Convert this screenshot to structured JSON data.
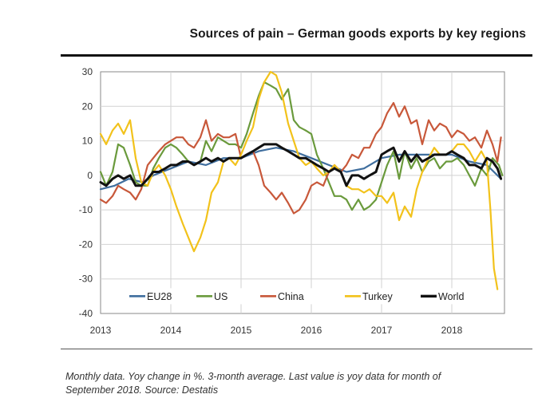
{
  "title": "Sources of pain – German goods exports by key regions",
  "footnote": {
    "line1": "Monthly data. Yoy change in %. 3-month average. Last value is yoy data for month of",
    "line2": "September 2018. Source: Destatis"
  },
  "chart_data": {
    "type": "line",
    "ylim": [
      -40,
      30
    ],
    "yticks": [
      30,
      20,
      10,
      0,
      -10,
      -20,
      -30,
      -40
    ],
    "xlim": [
      2013,
      2018.75
    ],
    "xticks": [
      2013,
      2014,
      2015,
      2016,
      2017,
      2018
    ],
    "grid": true,
    "legend_position": "bottom-inside",
    "series": [
      {
        "name": "EU28",
        "color": "#3f6e9e",
        "width": 2.2,
        "points": [
          [
            2013,
            -4
          ],
          [
            2013.2,
            -3
          ],
          [
            2013.4,
            -1
          ],
          [
            2013.6,
            -2
          ],
          [
            2013.75,
            0
          ],
          [
            2014,
            2
          ],
          [
            2014.25,
            4
          ],
          [
            2014.5,
            3
          ],
          [
            2014.75,
            5
          ],
          [
            2015,
            5
          ],
          [
            2015.25,
            7
          ],
          [
            2015.5,
            8
          ],
          [
            2015.75,
            7
          ],
          [
            2016,
            5
          ],
          [
            2016.25,
            3
          ],
          [
            2016.5,
            1
          ],
          [
            2016.75,
            2
          ],
          [
            2017,
            5
          ],
          [
            2017.25,
            6
          ],
          [
            2017.5,
            6
          ],
          [
            2017.75,
            6
          ],
          [
            2018,
            6
          ],
          [
            2018.25,
            4
          ],
          [
            2018.5,
            3
          ],
          [
            2018.7,
            -1
          ]
        ]
      },
      {
        "name": "US",
        "color": "#6a9a3c",
        "width": 2.2,
        "points": [
          [
            2013,
            1
          ],
          [
            2013.08,
            -3
          ],
          [
            2013.17,
            1
          ],
          [
            2013.25,
            9
          ],
          [
            2013.33,
            8
          ],
          [
            2013.42,
            3
          ],
          [
            2013.5,
            -2
          ],
          [
            2013.58,
            -3
          ],
          [
            2013.67,
            -3
          ],
          [
            2013.75,
            2
          ],
          [
            2013.83,
            5
          ],
          [
            2013.92,
            8
          ],
          [
            2014,
            9
          ],
          [
            2014.08,
            8
          ],
          [
            2014.17,
            6
          ],
          [
            2014.25,
            4
          ],
          [
            2014.33,
            3
          ],
          [
            2014.42,
            4
          ],
          [
            2014.5,
            10
          ],
          [
            2014.58,
            7
          ],
          [
            2014.67,
            11
          ],
          [
            2014.75,
            10
          ],
          [
            2014.83,
            9
          ],
          [
            2014.92,
            9
          ],
          [
            2015,
            8
          ],
          [
            2015.08,
            12
          ],
          [
            2015.17,
            18
          ],
          [
            2015.25,
            23
          ],
          [
            2015.33,
            27
          ],
          [
            2015.42,
            26
          ],
          [
            2015.5,
            25
          ],
          [
            2015.58,
            22
          ],
          [
            2015.67,
            25
          ],
          [
            2015.75,
            16
          ],
          [
            2015.83,
            14
          ],
          [
            2015.92,
            13
          ],
          [
            2016,
            12
          ],
          [
            2016.08,
            6
          ],
          [
            2016.17,
            2
          ],
          [
            2016.25,
            -2
          ],
          [
            2016.33,
            -6
          ],
          [
            2016.42,
            -6
          ],
          [
            2016.5,
            -7
          ],
          [
            2016.58,
            -10
          ],
          [
            2016.67,
            -7
          ],
          [
            2016.75,
            -10
          ],
          [
            2016.83,
            -9
          ],
          [
            2016.92,
            -7
          ],
          [
            2017,
            -2
          ],
          [
            2017.08,
            3
          ],
          [
            2017.17,
            7
          ],
          [
            2017.25,
            -1
          ],
          [
            2017.33,
            7
          ],
          [
            2017.42,
            2
          ],
          [
            2017.5,
            5
          ],
          [
            2017.58,
            1
          ],
          [
            2017.67,
            4
          ],
          [
            2017.75,
            5
          ],
          [
            2017.83,
            2
          ],
          [
            2017.92,
            4
          ],
          [
            2018,
            4
          ],
          [
            2018.08,
            5
          ],
          [
            2018.17,
            3
          ],
          [
            2018.25,
            0
          ],
          [
            2018.33,
            -3
          ],
          [
            2018.42,
            2
          ],
          [
            2018.5,
            0
          ],
          [
            2018.58,
            5
          ],
          [
            2018.67,
            3
          ],
          [
            2018.72,
            0
          ]
        ]
      },
      {
        "name": "China",
        "color": "#c8583a",
        "width": 2.2,
        "points": [
          [
            2013,
            -7
          ],
          [
            2013.08,
            -8
          ],
          [
            2013.17,
            -6
          ],
          [
            2013.25,
            -3
          ],
          [
            2013.33,
            -4
          ],
          [
            2013.42,
            -5
          ],
          [
            2013.5,
            -7
          ],
          [
            2013.58,
            -4
          ],
          [
            2013.67,
            3
          ],
          [
            2013.75,
            5
          ],
          [
            2013.83,
            7
          ],
          [
            2013.92,
            9
          ],
          [
            2014,
            10
          ],
          [
            2014.08,
            11
          ],
          [
            2014.17,
            11
          ],
          [
            2014.25,
            9
          ],
          [
            2014.33,
            8
          ],
          [
            2014.42,
            11
          ],
          [
            2014.5,
            16
          ],
          [
            2014.58,
            10
          ],
          [
            2014.67,
            12
          ],
          [
            2014.75,
            11
          ],
          [
            2014.83,
            11
          ],
          [
            2014.92,
            12
          ],
          [
            2015,
            5
          ],
          [
            2015.08,
            6
          ],
          [
            2015.17,
            7
          ],
          [
            2015.25,
            3
          ],
          [
            2015.33,
            -3
          ],
          [
            2015.42,
            -5
          ],
          [
            2015.5,
            -7
          ],
          [
            2015.58,
            -5
          ],
          [
            2015.67,
            -8
          ],
          [
            2015.75,
            -11
          ],
          [
            2015.83,
            -10
          ],
          [
            2015.92,
            -7
          ],
          [
            2016,
            -3
          ],
          [
            2016.08,
            -2
          ],
          [
            2016.17,
            -3
          ],
          [
            2016.25,
            1
          ],
          [
            2016.33,
            3
          ],
          [
            2016.42,
            1
          ],
          [
            2016.5,
            3
          ],
          [
            2016.58,
            6
          ],
          [
            2016.67,
            5
          ],
          [
            2016.75,
            8
          ],
          [
            2016.83,
            8
          ],
          [
            2016.92,
            12
          ],
          [
            2017,
            14
          ],
          [
            2017.08,
            18
          ],
          [
            2017.17,
            21
          ],
          [
            2017.25,
            17
          ],
          [
            2017.33,
            20
          ],
          [
            2017.42,
            15
          ],
          [
            2017.5,
            16
          ],
          [
            2017.58,
            9
          ],
          [
            2017.67,
            16
          ],
          [
            2017.75,
            13
          ],
          [
            2017.83,
            15
          ],
          [
            2017.92,
            14
          ],
          [
            2018,
            11
          ],
          [
            2018.08,
            13
          ],
          [
            2018.17,
            12
          ],
          [
            2018.25,
            10
          ],
          [
            2018.33,
            11
          ],
          [
            2018.42,
            8
          ],
          [
            2018.5,
            13
          ],
          [
            2018.58,
            9
          ],
          [
            2018.65,
            4
          ],
          [
            2018.7,
            11
          ]
        ]
      },
      {
        "name": "Turkey",
        "color": "#f2c21b",
        "width": 2.2,
        "points": [
          [
            2013,
            12
          ],
          [
            2013.08,
            9
          ],
          [
            2013.17,
            13
          ],
          [
            2013.25,
            15
          ],
          [
            2013.33,
            12
          ],
          [
            2013.42,
            16
          ],
          [
            2013.5,
            5
          ],
          [
            2013.58,
            -2
          ],
          [
            2013.67,
            -3
          ],
          [
            2013.75,
            1
          ],
          [
            2013.83,
            3
          ],
          [
            2013.92,
            0
          ],
          [
            2014,
            -4
          ],
          [
            2014.08,
            -9
          ],
          [
            2014.17,
            -14
          ],
          [
            2014.25,
            -18
          ],
          [
            2014.33,
            -22
          ],
          [
            2014.42,
            -18
          ],
          [
            2014.5,
            -13
          ],
          [
            2014.58,
            -5
          ],
          [
            2014.67,
            -2
          ],
          [
            2014.75,
            4
          ],
          [
            2014.83,
            5
          ],
          [
            2014.92,
            3
          ],
          [
            2015,
            6
          ],
          [
            2015.08,
            10
          ],
          [
            2015.17,
            14
          ],
          [
            2015.25,
            22
          ],
          [
            2015.33,
            27
          ],
          [
            2015.42,
            30
          ],
          [
            2015.5,
            29
          ],
          [
            2015.58,
            24
          ],
          [
            2015.67,
            15
          ],
          [
            2015.75,
            10
          ],
          [
            2015.83,
            5
          ],
          [
            2015.92,
            3
          ],
          [
            2016,
            4
          ],
          [
            2016.08,
            2
          ],
          [
            2016.17,
            0
          ],
          [
            2016.25,
            1
          ],
          [
            2016.33,
            3
          ],
          [
            2016.42,
            1
          ],
          [
            2016.5,
            -3
          ],
          [
            2016.58,
            -4
          ],
          [
            2016.67,
            -4
          ],
          [
            2016.75,
            -5
          ],
          [
            2016.83,
            -4
          ],
          [
            2016.92,
            -6
          ],
          [
            2017,
            -6
          ],
          [
            2017.08,
            -8
          ],
          [
            2017.17,
            -5
          ],
          [
            2017.25,
            -13
          ],
          [
            2017.33,
            -9
          ],
          [
            2017.42,
            -12
          ],
          [
            2017.5,
            -4
          ],
          [
            2017.58,
            1
          ],
          [
            2017.67,
            5
          ],
          [
            2017.75,
            8
          ],
          [
            2017.83,
            6
          ],
          [
            2017.92,
            6
          ],
          [
            2018,
            7
          ],
          [
            2018.08,
            9
          ],
          [
            2018.17,
            9
          ],
          [
            2018.25,
            7
          ],
          [
            2018.33,
            4
          ],
          [
            2018.42,
            7
          ],
          [
            2018.5,
            4
          ],
          [
            2018.55,
            -10
          ],
          [
            2018.6,
            -27
          ],
          [
            2018.65,
            -33
          ]
        ]
      },
      {
        "name": "World",
        "color": "#111111",
        "width": 3,
        "points": [
          [
            2013,
            -2
          ],
          [
            2013.08,
            -3
          ],
          [
            2013.17,
            -1
          ],
          [
            2013.25,
            0
          ],
          [
            2013.33,
            -1
          ],
          [
            2013.42,
            0
          ],
          [
            2013.5,
            -3
          ],
          [
            2013.58,
            -3
          ],
          [
            2013.67,
            -1
          ],
          [
            2013.75,
            1
          ],
          [
            2013.83,
            1
          ],
          [
            2013.92,
            2
          ],
          [
            2014,
            3
          ],
          [
            2014.08,
            3
          ],
          [
            2014.17,
            4
          ],
          [
            2014.25,
            4
          ],
          [
            2014.33,
            3
          ],
          [
            2014.42,
            4
          ],
          [
            2014.5,
            5
          ],
          [
            2014.58,
            4
          ],
          [
            2014.67,
            5
          ],
          [
            2014.75,
            4
          ],
          [
            2014.83,
            5
          ],
          [
            2014.92,
            5
          ],
          [
            2015,
            5
          ],
          [
            2015.08,
            6
          ],
          [
            2015.17,
            7
          ],
          [
            2015.25,
            8
          ],
          [
            2015.33,
            9
          ],
          [
            2015.42,
            9
          ],
          [
            2015.5,
            9
          ],
          [
            2015.58,
            8
          ],
          [
            2015.67,
            7
          ],
          [
            2015.75,
            6
          ],
          [
            2015.83,
            5
          ],
          [
            2015.92,
            5
          ],
          [
            2016,
            4
          ],
          [
            2016.08,
            3
          ],
          [
            2016.17,
            2
          ],
          [
            2016.25,
            1
          ],
          [
            2016.33,
            2
          ],
          [
            2016.42,
            1
          ],
          [
            2016.5,
            -3
          ],
          [
            2016.58,
            0
          ],
          [
            2016.67,
            0
          ],
          [
            2016.75,
            -1
          ],
          [
            2016.83,
            0
          ],
          [
            2016.92,
            1
          ],
          [
            2017,
            6
          ],
          [
            2017.08,
            7
          ],
          [
            2017.17,
            8
          ],
          [
            2017.25,
            4
          ],
          [
            2017.33,
            7
          ],
          [
            2017.42,
            4
          ],
          [
            2017.5,
            6
          ],
          [
            2017.58,
            4
          ],
          [
            2017.67,
            5
          ],
          [
            2017.75,
            6
          ],
          [
            2017.83,
            6
          ],
          [
            2017.92,
            6
          ],
          [
            2018,
            7
          ],
          [
            2018.08,
            6
          ],
          [
            2018.17,
            5
          ],
          [
            2018.25,
            3
          ],
          [
            2018.33,
            3
          ],
          [
            2018.42,
            2
          ],
          [
            2018.5,
            5
          ],
          [
            2018.58,
            4
          ],
          [
            2018.65,
            2
          ],
          [
            2018.7,
            -1
          ]
        ]
      }
    ]
  }
}
